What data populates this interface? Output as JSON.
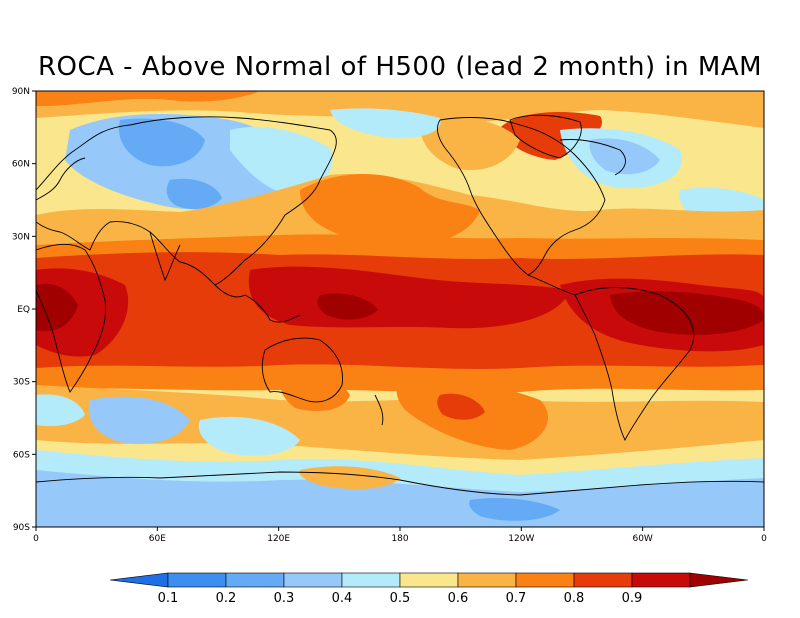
{
  "title": "ROCA - Above Normal of H500 (lead 2 month) in MAM",
  "map": {
    "lon_range": [
      0,
      360
    ],
    "lat_range": [
      -90,
      90
    ],
    "lat_ticks": [
      {
        "lat": 90,
        "label": "90N"
      },
      {
        "lat": 60,
        "label": "60N"
      },
      {
        "lat": 30,
        "label": "30N"
      },
      {
        "lat": 0,
        "label": "EQ"
      },
      {
        "lat": -30,
        "label": "30S"
      },
      {
        "lat": -60,
        "label": "60S"
      },
      {
        "lat": -90,
        "label": "90S"
      }
    ],
    "lon_ticks": [
      {
        "lon": 0,
        "label": "0"
      },
      {
        "lon": 60,
        "label": "60E"
      },
      {
        "lon": 120,
        "label": "120E"
      },
      {
        "lon": 180,
        "label": "180"
      },
      {
        "lon": 240,
        "label": "120W"
      },
      {
        "lon": 300,
        "label": "60W"
      },
      {
        "lon": 360,
        "label": "0"
      }
    ]
  },
  "colorbar": {
    "colors": [
      "#1e6fe6",
      "#3c8ff0",
      "#64aaf4",
      "#96c8fa",
      "#b4ebfa",
      "#fae68c",
      "#fab446",
      "#fa8214",
      "#e63c0a",
      "#c80a0a",
      "#a00000"
    ],
    "labels": [
      "0.1",
      "0.2",
      "0.3",
      "0.4",
      "0.5",
      "0.6",
      "0.7",
      "0.8",
      "0.9"
    ]
  }
}
